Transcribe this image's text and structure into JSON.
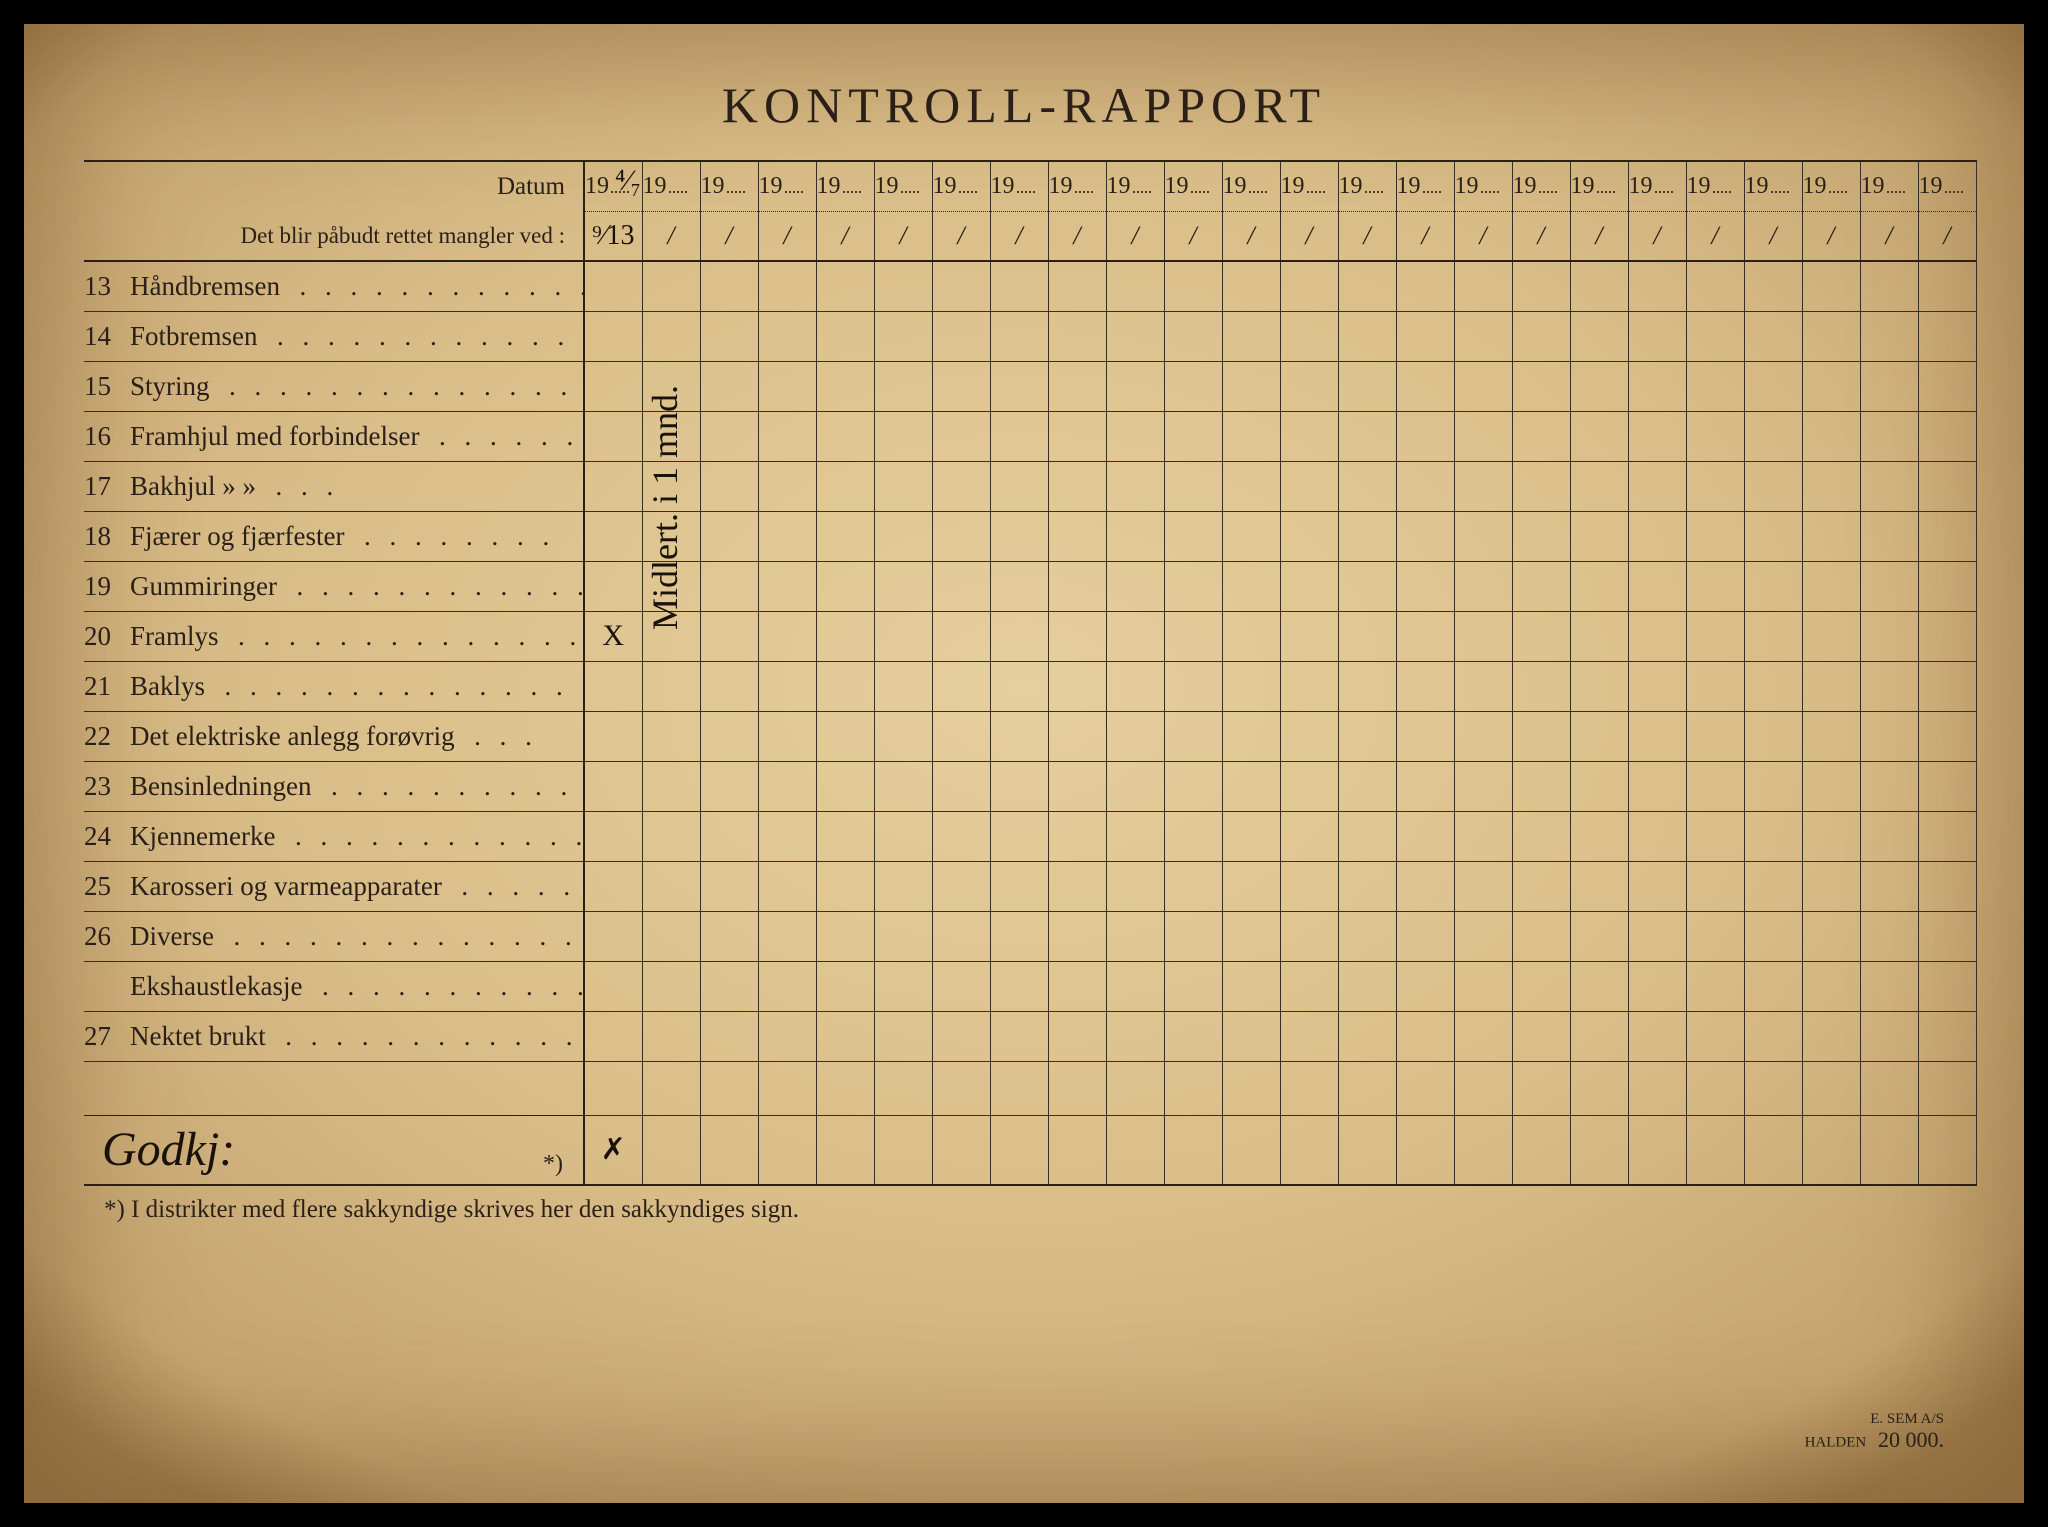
{
  "title": "KONTROLL-RAPPORT",
  "header": {
    "datum_label": "Datum",
    "mangler_label": "Det blir påbudt rettet mangler ved :",
    "year_prefix": "19",
    "num_date_columns": 24,
    "first_col_year_handwritten": "⁴⁄₇",
    "first_col_slash_handwritten": "⁹⁄13",
    "slash_placeholder": "/"
  },
  "rows": [
    {
      "num": "13",
      "label": "Håndbremsen",
      "marks": [
        ""
      ]
    },
    {
      "num": "14",
      "label": "Fotbremsen",
      "marks": [
        ""
      ]
    },
    {
      "num": "15",
      "label": "Styring",
      "marks": [
        ""
      ]
    },
    {
      "num": "16",
      "label": "Framhjul med forbindelser",
      "marks": [
        ""
      ]
    },
    {
      "num": "17",
      "label": "Bakhjul        »              »",
      "marks": [
        ""
      ]
    },
    {
      "num": "18",
      "label": "Fjærer og fjærfester",
      "marks": [
        ""
      ]
    },
    {
      "num": "19",
      "label": "Gummiringer",
      "marks": [
        ""
      ]
    },
    {
      "num": "20",
      "label": "Framlys",
      "marks": [
        "X"
      ]
    },
    {
      "num": "21",
      "label": "Baklys",
      "marks": [
        ""
      ]
    },
    {
      "num": "22",
      "label": "Det elektriske anlegg forøvrig",
      "marks": [
        ""
      ]
    },
    {
      "num": "23",
      "label": "Bensinledningen",
      "marks": [
        ""
      ]
    },
    {
      "num": "24",
      "label": "Kjennemerke",
      "marks": [
        ""
      ]
    },
    {
      "num": "25",
      "label": "Karosseri og varmeapparater",
      "marks": [
        ""
      ]
    },
    {
      "num": "26",
      "label": "Diverse",
      "marks": [
        ""
      ]
    },
    {
      "num": "",
      "label": "Ekshaustlekasje",
      "marks": [
        ""
      ]
    },
    {
      "num": "27",
      "label": "Nektet brukt",
      "marks": [
        ""
      ]
    }
  ],
  "vertical_note_col1": "Midlert. i 1 mnd.",
  "signature": {
    "text": "Godkj:",
    "ast": "*)",
    "mark": "✗"
  },
  "footnote": "*)  I distrikter med flere sakkyndige skrives her den sakkyndiges sign.",
  "printer": {
    "line1": "E. SEM A/S",
    "line2": "HALDEN",
    "count": "20 000."
  },
  "colors": {
    "ink": "#2a2018",
    "hand": "#1a120a",
    "paper_center": "#e5cf9d",
    "paper_edge": "#a2814f"
  }
}
